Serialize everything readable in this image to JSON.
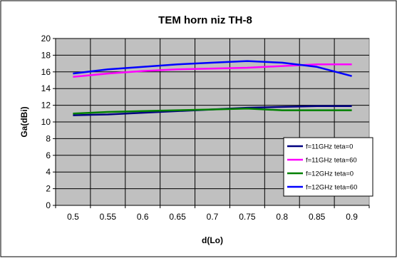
{
  "chart_data": {
    "type": "line",
    "title": "TEM horn niz TH-8",
    "xlabel": "d(Lo)",
    "ylabel": "Ga(dBi)",
    "x": [
      0.5,
      0.55,
      0.6,
      0.65,
      0.7,
      0.75,
      0.8,
      0.85,
      0.9
    ],
    "x_tick_labels": [
      "0.5",
      "0.55",
      "0.6",
      "0.65",
      "0.7",
      "0.75",
      "0.8",
      "0.85",
      "0.9"
    ],
    "ylim": [
      0,
      20
    ],
    "y_ticks": [
      0,
      2,
      4,
      6,
      8,
      10,
      12,
      14,
      16,
      18,
      20
    ],
    "grid": true,
    "plot_background": "#c0c0c0",
    "legend_position": "bottom-right",
    "series": [
      {
        "name": "f=11GHz teta=0",
        "color": "#000080",
        "values": [
          10.8,
          10.9,
          11.1,
          11.3,
          11.5,
          11.7,
          11.8,
          11.9,
          11.9
        ]
      },
      {
        "name": "f=11GHz teta=60",
        "color": "#ff00ff",
        "values": [
          15.4,
          15.8,
          16.1,
          16.3,
          16.4,
          16.5,
          16.7,
          16.9,
          16.9
        ]
      },
      {
        "name": "f=12GHz teta=0",
        "color": "#008000",
        "values": [
          11.0,
          11.2,
          11.3,
          11.4,
          11.5,
          11.6,
          11.4,
          11.4,
          11.4
        ]
      },
      {
        "name": "f=12GHz teta=60",
        "color": "#0000ff",
        "values": [
          15.8,
          16.3,
          16.6,
          16.9,
          17.1,
          17.3,
          17.1,
          16.6,
          15.5
        ]
      }
    ]
  }
}
